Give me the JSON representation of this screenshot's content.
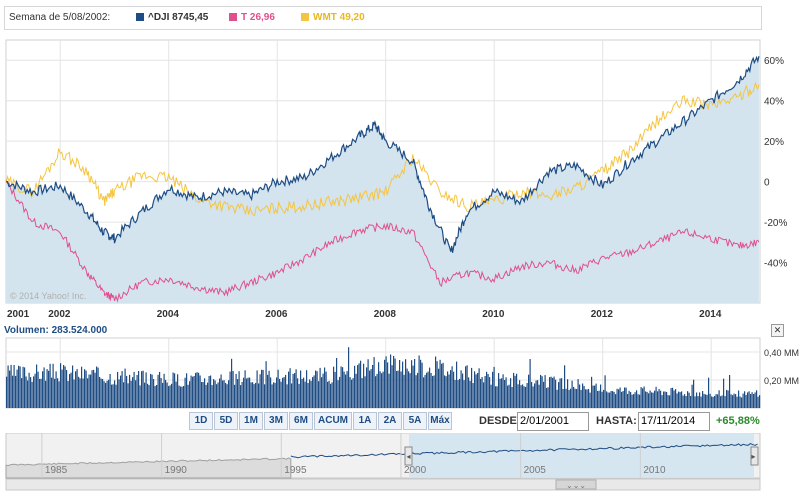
{
  "legend": {
    "week_label": "Semana de 5/08/2002:",
    "dji_label": "^DJI 8745,45",
    "t_label": "T 26,96",
    "wmt_label": "WMT 49,20"
  },
  "colors": {
    "dji": "#1e4d84",
    "t": "#e0508c",
    "wmt": "#f5c542",
    "fill": "#d3e4ef",
    "volume": "#1e4d84"
  },
  "main_chart": {
    "watermark": "© 2014 Yahoo! Inc.",
    "y_ticks": [
      "60%",
      "40%",
      "20%",
      "0",
      "-20%",
      "-40%"
    ],
    "x_ticks": [
      "2001",
      "2002",
      "2004",
      "2006",
      "2008",
      "2010",
      "2012",
      "2014"
    ]
  },
  "volume": {
    "label": "Volumen: 283.524.000",
    "y_ticks": [
      "0,40 MM",
      "0,20 MM"
    ],
    "close_icon": "close-icon"
  },
  "range_buttons": [
    "1D",
    "5D",
    "1M",
    "3M",
    "6M",
    "ACUM",
    "1A",
    "2A",
    "5A",
    "Máx"
  ],
  "from": {
    "label": "DESDE:",
    "value": "2/01/2001"
  },
  "to": {
    "label": "HASTA:",
    "value": "17/11/2014"
  },
  "change": "+65,88%",
  "navigator": {
    "x_ticks": [
      "1985",
      "1990",
      "1995",
      "2000",
      "2005",
      "2010"
    ],
    "handle_icon": "grip-icon"
  },
  "chart_data": [
    {
      "type": "line",
      "series": [
        {
          "name": "^DJI",
          "x": [
            2001.0,
            2001.5,
            2002.0,
            2002.5,
            2002.8,
            2003.0,
            2003.5,
            2004.0,
            2004.5,
            2005.0,
            2005.5,
            2006.0,
            2006.5,
            2007.0,
            2007.5,
            2007.8,
            2008.0,
            2008.5,
            2008.8,
            2009.2,
            2009.5,
            2010.0,
            2010.5,
            2011.0,
            2011.5,
            2012.0,
            2012.5,
            2013.0,
            2013.5,
            2014.0,
            2014.5,
            2014.88
          ],
          "values": [
            0,
            -5,
            -2,
            -15,
            -25,
            -28,
            -15,
            -3,
            -8,
            -5,
            -7,
            0,
            2,
            12,
            22,
            28,
            20,
            10,
            -12,
            -35,
            -15,
            -5,
            -10,
            5,
            8,
            -2,
            10,
            20,
            30,
            40,
            50,
            62
          ]
        },
        {
          "name": "T",
          "x": [
            2001.0,
            2001.5,
            2002.0,
            2002.5,
            2002.8,
            2003.0,
            2003.5,
            2004.0,
            2004.5,
            2005.0,
            2005.5,
            2006.0,
            2006.5,
            2007.0,
            2007.5,
            2008.0,
            2008.5,
            2009.0,
            2009.5,
            2010.0,
            2010.5,
            2011.0,
            2011.5,
            2012.0,
            2012.5,
            2013.0,
            2013.5,
            2014.0,
            2014.5,
            2014.88
          ],
          "values": [
            0,
            -20,
            -25,
            -45,
            -55,
            -58,
            -50,
            -48,
            -52,
            -55,
            -50,
            -45,
            -38,
            -30,
            -24,
            -22,
            -25,
            -50,
            -45,
            -48,
            -42,
            -40,
            -44,
            -38,
            -35,
            -30,
            -25,
            -28,
            -32,
            -30
          ]
        },
        {
          "name": "WMT",
          "x": [
            2001.0,
            2001.5,
            2002.0,
            2002.5,
            2002.8,
            2003.0,
            2003.5,
            2004.0,
            2004.5,
            2005.0,
            2005.5,
            2006.0,
            2006.5,
            2007.0,
            2007.5,
            2008.0,
            2008.5,
            2009.0,
            2009.5,
            2010.0,
            2010.5,
            2011.0,
            2011.5,
            2012.0,
            2012.5,
            2013.0,
            2013.5,
            2014.0,
            2014.5,
            2014.88
          ],
          "values": [
            0,
            -5,
            15,
            5,
            -10,
            -5,
            3,
            2,
            -8,
            -12,
            -15,
            -13,
            -12,
            -10,
            -8,
            -5,
            12,
            -5,
            -12,
            -10,
            -5,
            -7,
            -3,
            5,
            15,
            30,
            40,
            38,
            42,
            48
          ]
        }
      ],
      "y_range": [
        -60,
        70
      ],
      "x_range": [
        2001.0,
        2014.9
      ]
    },
    {
      "type": "bar",
      "title": "Volumen",
      "series": [
        {
          "name": "Volumen",
          "x": [
            2001,
            2002,
            2003,
            2004,
            2005,
            2006,
            2007,
            2008,
            2009,
            2010,
            2011,
            2012,
            2013,
            2014
          ],
          "values": [
            0.24,
            0.25,
            0.22,
            0.2,
            0.21,
            0.22,
            0.23,
            0.32,
            0.28,
            0.2,
            0.18,
            0.13,
            0.12,
            0.1
          ]
        }
      ],
      "y_range": [
        0,
        0.5
      ]
    }
  ]
}
